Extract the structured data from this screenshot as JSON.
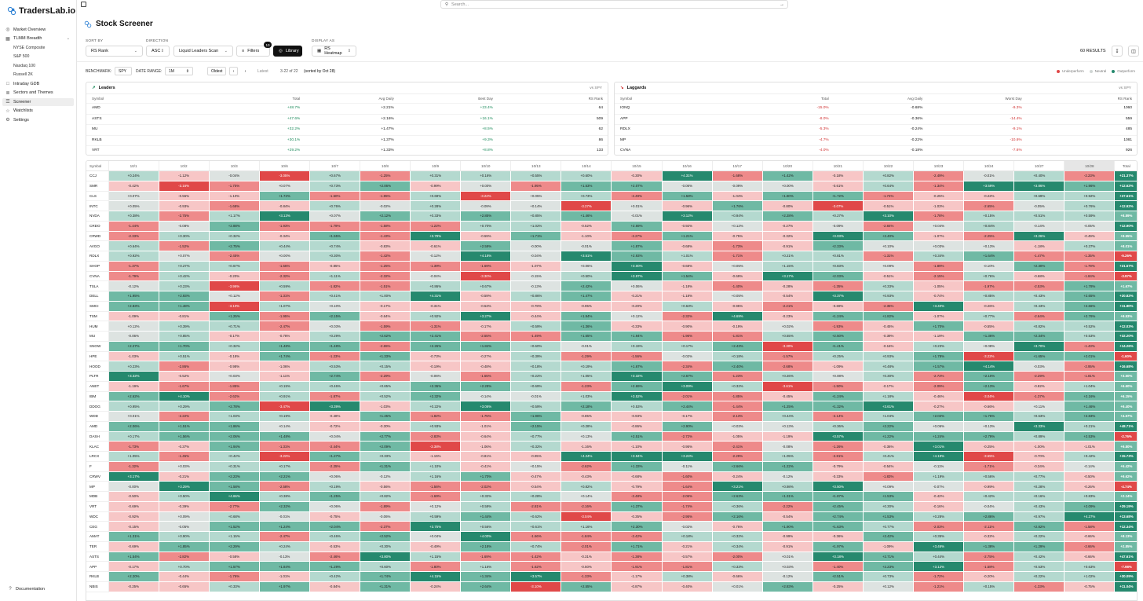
{
  "app": {
    "brand": "TradersLab.io",
    "search_placeholder": "Search...",
    "page_title": "Stock Screener"
  },
  "sidebar": {
    "items": [
      {
        "label": "Market Overview",
        "icon": "globe-icon"
      },
      {
        "label": "TLMM Breadth",
        "icon": "grid-icon",
        "expanded": true
      },
      {
        "label": "NYSE Composite",
        "sub": true
      },
      {
        "label": "S&P 500",
        "sub": true
      },
      {
        "label": "Nasdaq 100",
        "sub": true
      },
      {
        "label": "Russell 2K",
        "sub": true
      },
      {
        "label": "Intraday GDB",
        "icon": "square-icon"
      },
      {
        "label": "Sectors and Themes",
        "icon": "layers-icon"
      },
      {
        "label": "Screener",
        "icon": "list-icon",
        "active": true
      },
      {
        "label": "Watchlists",
        "icon": "star-icon"
      },
      {
        "label": "Settings",
        "icon": "gear-icon"
      }
    ],
    "documentation": "Documentation"
  },
  "controls": {
    "sort_by_label": "SORT BY",
    "sort_by": "RS Rank",
    "direction_label": "DIRECTION",
    "direction": "ASC",
    "scan": "Liquid Leaders Scan",
    "filters": "Filters",
    "filters_count": "10",
    "library": "Library",
    "display_as_label": "DISPLAY AS",
    "display_as": "RS Heatmap",
    "results": "60 RESULTS"
  },
  "benchmark": {
    "label": "BENCHMARK:",
    "value": "SPY",
    "date_range_label": "DATE RANGE:",
    "date_range": "1M",
    "oldest": "Oldest",
    "latest": "Latest",
    "range_text": "3-22 of 22",
    "sorted_text": "(sorted by Oct 28)",
    "legend": [
      "Underperform",
      "Neutral",
      "Outperform"
    ]
  },
  "leaders": {
    "title": "Leaders",
    "vs": "vs SPY",
    "columns": [
      "Symbol",
      "Total",
      "Avg Daily",
      "Best Day",
      "RS Rank"
    ],
    "rows": [
      [
        "AMD",
        "+48.7%",
        "+2.21%",
        "+23.4%",
        "64"
      ],
      [
        "ASTS",
        "+47.6%",
        "+2.16%",
        "+16.1%",
        "509"
      ],
      [
        "MU",
        "+32.2%",
        "+1.47%",
        "+8.5%",
        "62"
      ],
      [
        "RKLB",
        "+30.1%",
        "+1.37%",
        "+9.3%",
        "86"
      ],
      [
        "VRT",
        "+29.2%",
        "+1.33%",
        "+8.8%",
        "133"
      ]
    ]
  },
  "laggards": {
    "title": "Laggards",
    "vs": "vs SPY",
    "columns": [
      "Symbol",
      "Total",
      "Avg Daily",
      "Worst Day",
      "RS Rank"
    ],
    "rows": [
      [
        "IONQ",
        "-15.0%",
        "-0.68%",
        "-9.3%",
        "1060"
      ],
      [
        "APP",
        "-8.0%",
        "-0.36%",
        "-14.4%",
        "559"
      ],
      [
        "RDLX",
        "-5.3%",
        "-0.24%",
        "-9.1%",
        "485"
      ],
      [
        "MP",
        "-4.7%",
        "-0.22%",
        "-10.6%",
        "1081"
      ],
      [
        "CVNA",
        "-4.0%",
        "-0.18%",
        "-7.6%",
        "926"
      ]
    ]
  },
  "colors": {
    "neg_strong": "#e04848",
    "neg_mid": "#ee8a8a",
    "neg_light": "#f7c6c6",
    "neutral": "#dde3e1",
    "pos_light": "#b4d9cf",
    "pos_mid": "#6fb9a4",
    "pos_strong": "#26896e"
  },
  "heatmap": {
    "columns": [
      "Symbol",
      "10/1",
      "10/2",
      "10/3",
      "10/6",
      "10/7",
      "10/8",
      "10/9",
      "10/10",
      "10/13",
      "10/14",
      "10/15",
      "10/16",
      "10/17",
      "10/20",
      "10/21",
      "10/22",
      "10/23",
      "10/24",
      "10/27",
      "10/28",
      "Total"
    ],
    "symbols": [
      "CCJ",
      "SMR",
      "CLS",
      "INTC",
      "NVDA",
      "CRDO",
      "CRWD",
      "AVGO",
      "RDLX",
      "SHOP",
      "CVNA",
      "TSLA",
      "DELL",
      "SMCI",
      "TSM",
      "HUM",
      "MU",
      "SNOW",
      "HPE",
      "HOOD",
      "PLTR",
      "ANET",
      "IBM",
      "DDOG",
      "WDD",
      "AMD",
      "DASH",
      "KLAC",
      "LRCX",
      "F",
      "CRWV",
      "MP",
      "MDB",
      "VRT",
      "WDC",
      "CEG",
      "AMAT",
      "TER",
      "ASTS",
      "APP",
      "RKLB",
      "NBIS"
    ],
    "totals": [
      "+21.37%",
      "+12.62%",
      "+27.61%",
      "+12.92%",
      "+8.89%",
      "+12.90%",
      "+9.55%",
      "+8.01%",
      "-5.26%",
      "+21.57%",
      "-3.97%",
      "+1.67%",
      "+20.82%",
      "+11.80%",
      "+9.53%",
      "+12.03%",
      "+32.20%",
      "+14.26%",
      "-1.60%",
      "+16.68%",
      "+3.50%",
      "+6.60%",
      "+6.15%",
      "+9.40%",
      "+4.57%",
      "+48.71%",
      "-2.76%",
      "+9.80%",
      "+15.73%",
      "+5.42%",
      "+9.62%",
      "-4.74%",
      "+2.14%",
      "+29.19%",
      "+13.68%",
      "+12.34%",
      "+8.13%",
      "+2.85%",
      "+47.61%",
      "-7.98%",
      "+30.09%",
      "+11.04%"
    ],
    "seed": 7
  }
}
